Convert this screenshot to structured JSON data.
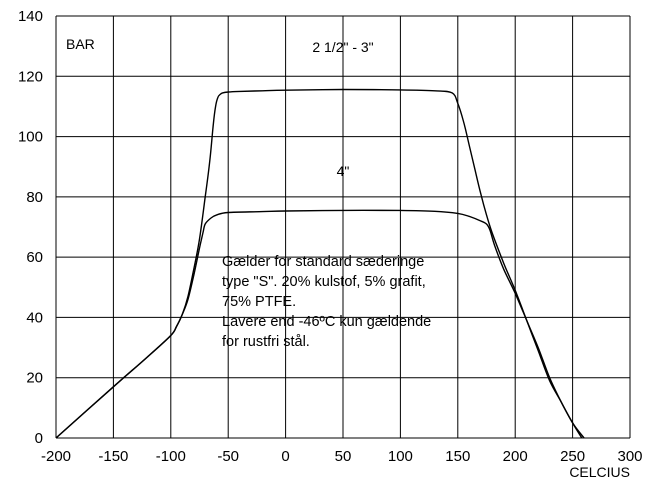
{
  "chart_data": {
    "type": "line",
    "xlabel": "CELCIUS",
    "ylabel": "BAR",
    "xlim": [
      -200,
      300
    ],
    "ylim": [
      0,
      140
    ],
    "xticks": [
      -200,
      -150,
      -100,
      -50,
      0,
      50,
      100,
      150,
      200,
      250,
      300
    ],
    "yticks": [
      0,
      20,
      40,
      60,
      80,
      100,
      120,
      140
    ],
    "grid": true,
    "series": [
      {
        "name": "2 1/2\" - 3\"",
        "label_at": [
          50,
          128
        ],
        "x": [
          -200,
          -150,
          -120,
          -100,
          -95,
          -90,
          -85,
          -80,
          -75,
          -70,
          -66,
          -63,
          -61,
          -59,
          -57,
          -55,
          -50,
          -40,
          -20,
          0,
          50,
          100,
          130,
          145,
          150,
          155,
          160,
          165,
          170,
          175,
          180,
          190,
          200,
          210,
          220,
          230,
          240,
          250,
          260
        ],
        "y": [
          0,
          17,
          27,
          34,
          37,
          41,
          47,
          56,
          66,
          80,
          92,
          104,
          110,
          113,
          114,
          114.5,
          114.8,
          115,
          115.2,
          115.4,
          115.6,
          115.5,
          115.2,
          114.5,
          111,
          105,
          97,
          89,
          81,
          74,
          68,
          58,
          49,
          39,
          29,
          19,
          12,
          5,
          0
        ]
      },
      {
        "name": "4\"",
        "label_at": [
          50,
          87
        ],
        "x": [
          -200,
          -150,
          -120,
          -100,
          -95,
          -90,
          -85,
          -80,
          -75,
          -72,
          -70,
          -65,
          -60,
          -50,
          -20,
          0,
          50,
          100,
          130,
          150,
          160,
          170,
          175,
          178,
          182,
          190,
          200,
          210,
          220,
          230,
          240,
          250,
          258
        ],
        "y": [
          0,
          17,
          27,
          34,
          37,
          41,
          46,
          54,
          63,
          68,
          71,
          73,
          74,
          74.8,
          75.1,
          75.3,
          75.5,
          75.5,
          75.2,
          74.5,
          73.5,
          72,
          71,
          69,
          64,
          56,
          48,
          39,
          30,
          20,
          12,
          5,
          0
        ]
      }
    ],
    "annotation": {
      "lines": [
        "Gælder for standard sæderinge",
        "type \"S\". 20% kulstof, 5% grafit,",
        "75% PTFE.",
        "Lavere end -46ºC kun gældende",
        "for rustfri stål."
      ]
    }
  }
}
